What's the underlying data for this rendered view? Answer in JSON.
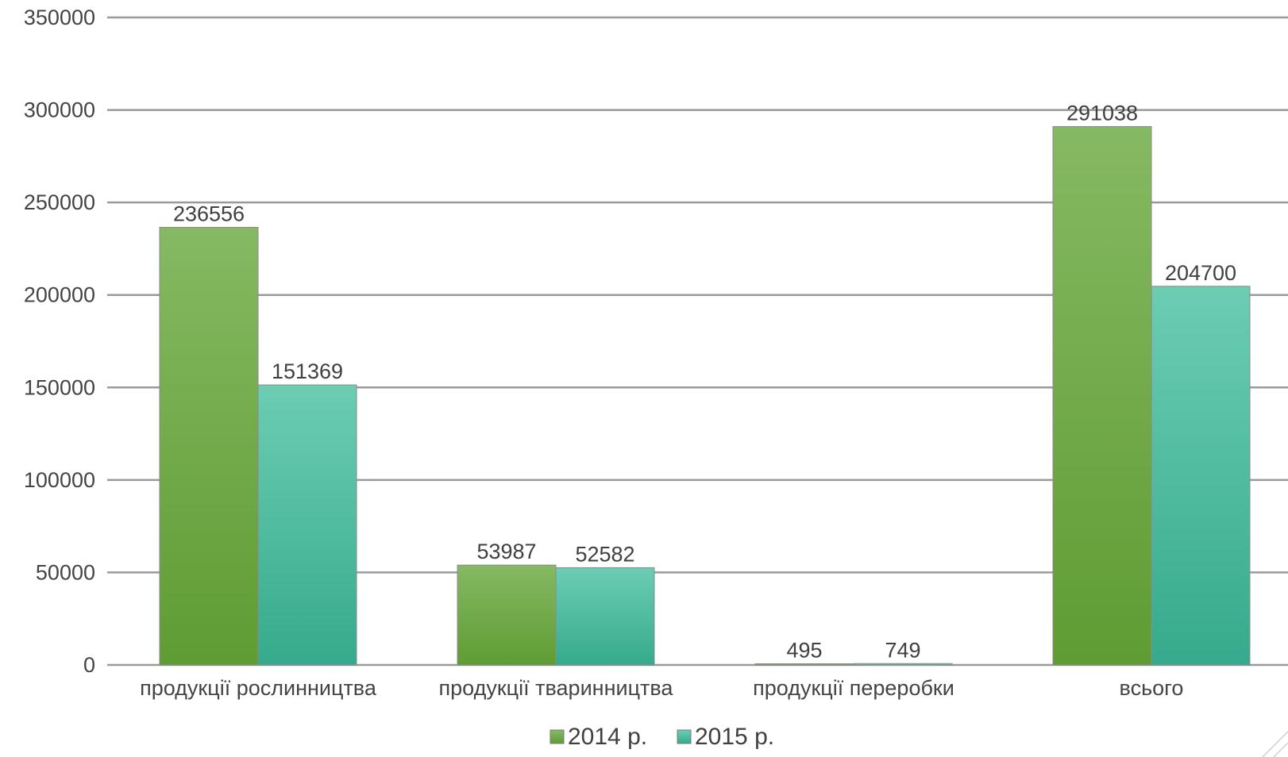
{
  "chart_data": {
    "type": "bar",
    "categories": [
      "продукції рослинництва",
      "продукції тваринництва",
      "продукції переробки",
      "всього"
    ],
    "series": [
      {
        "name": "2014 р.",
        "values": [
          236556,
          53987,
          495,
          291038
        ],
        "color": "#5f9c33",
        "color_light": "#86b963"
      },
      {
        "name": "2015 р.",
        "values": [
          151369,
          52582,
          749,
          204700
        ],
        "color": "#36aa8c",
        "color_light": "#6ccdb3"
      }
    ],
    "data_labels": [
      [
        "236556",
        "53987",
        "495",
        "291038"
      ],
      [
        "151369",
        "52582",
        "749",
        "204700"
      ]
    ],
    "ylim": [
      0,
      350000
    ],
    "y_ticks": [
      0,
      50000,
      100000,
      150000,
      200000,
      250000,
      300000,
      350000
    ],
    "y_tick_labels": [
      "0",
      "50000",
      "100000",
      "150000",
      "200000",
      "250000",
      "300000",
      "350000"
    ],
    "grid": true,
    "legend_position": "bottom",
    "title": "",
    "xlabel": "",
    "ylabel": ""
  }
}
